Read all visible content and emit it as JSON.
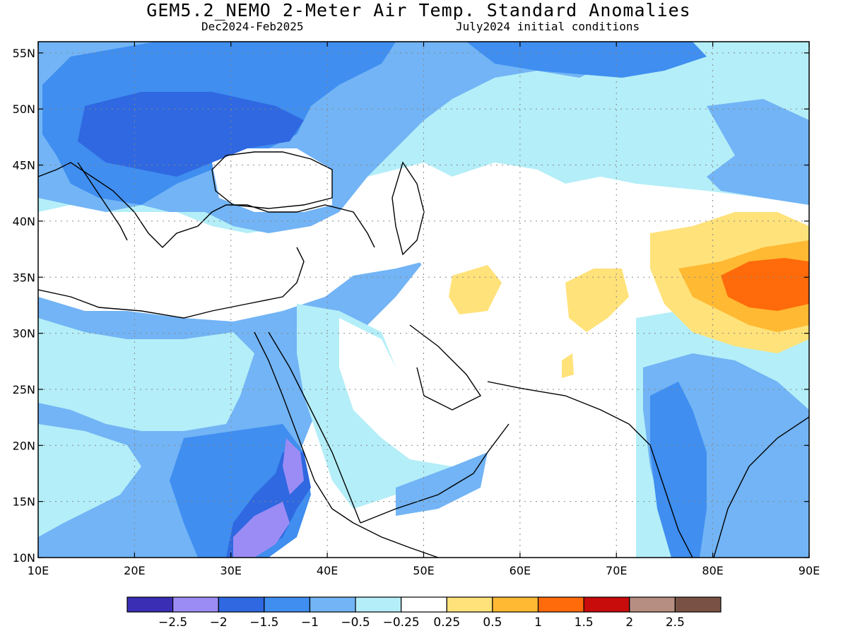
{
  "header": {
    "title": "GEM5.2_NEMO 2-Meter Air Temp. Standard Anomalies",
    "period": "Dec2024-Feb2025",
    "init": "July2024 initial conditions"
  },
  "map": {
    "lon_range": [
      10,
      90
    ],
    "lat_range": [
      10,
      56
    ],
    "lon_labels": [
      "10E",
      "20E",
      "30E",
      "40E",
      "50E",
      "60E",
      "70E",
      "80E",
      "90E"
    ],
    "lat_labels": [
      "10N",
      "15N",
      "20N",
      "25N",
      "30N",
      "35N",
      "40N",
      "45N",
      "50N",
      "55N"
    ],
    "grid": "dotted"
  },
  "colorbar": {
    "colors": [
      "#3a2fb4",
      "#9b8cf5",
      "#2f68e0",
      "#3f8ef0",
      "#72b4f5",
      "#b4eef8",
      "#ffffff",
      "#ffe27a",
      "#ffb933",
      "#ff6a0a",
      "#c80b0b",
      "#b78e82",
      "#7a5245"
    ],
    "labels": [
      "−2.5",
      "−2",
      "−1.5",
      "−1",
      "−0.5",
      "−0.25",
      "0.25",
      "0.5",
      "1",
      "1.5",
      "2",
      "2.5"
    ]
  }
}
